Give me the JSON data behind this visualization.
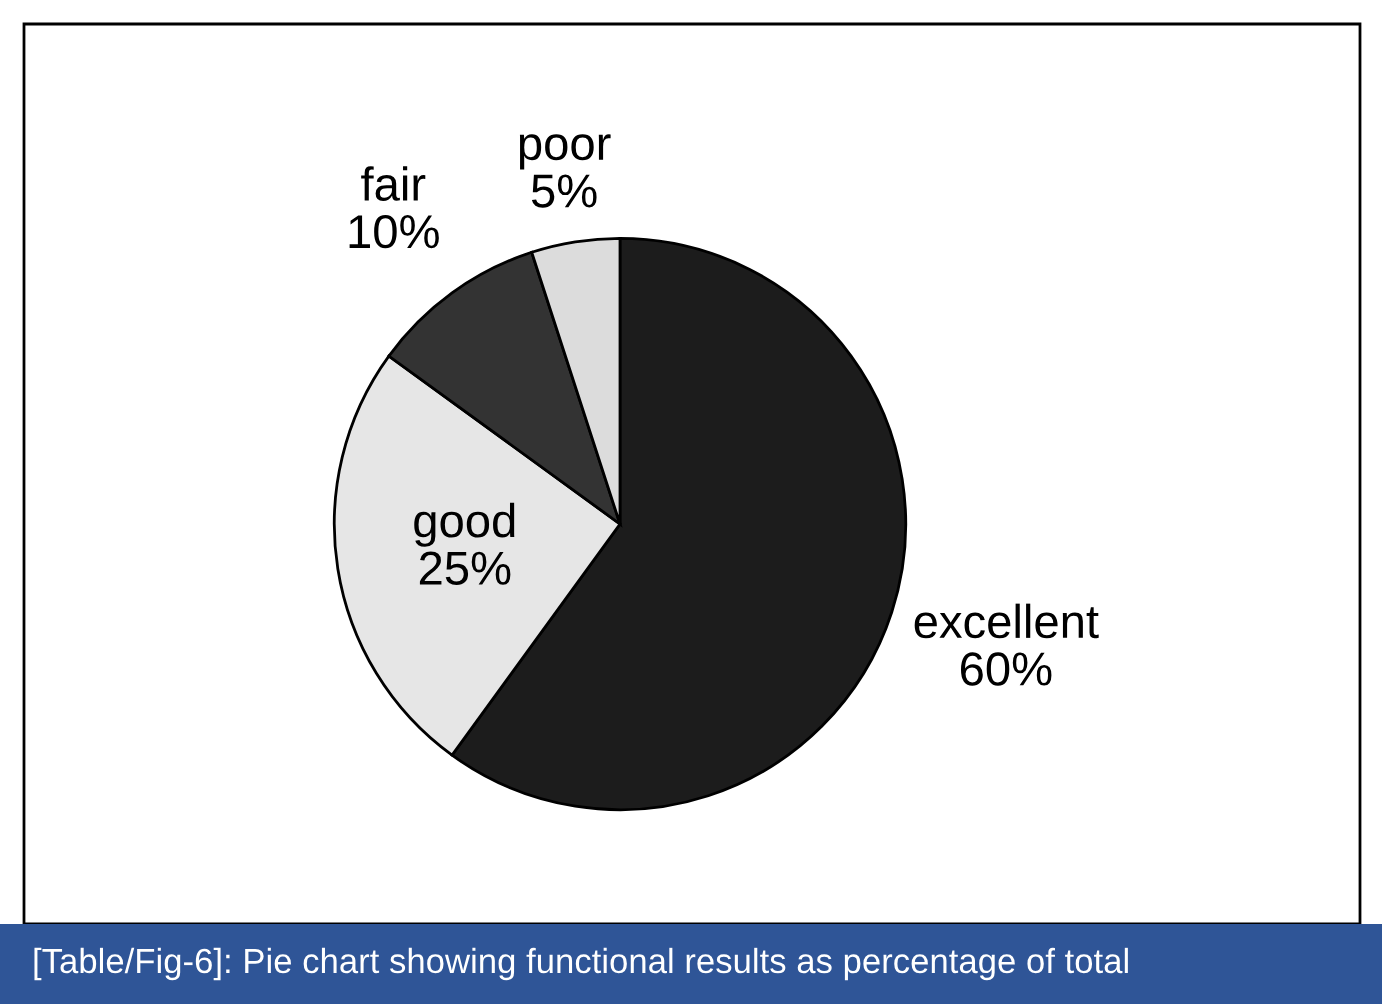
{
  "chart_data": {
    "type": "pie",
    "categories": [
      "excellent",
      "good",
      "fair",
      "poor"
    ],
    "values": [
      60,
      25,
      10,
      5
    ],
    "value_labels": [
      "60%",
      "25%",
      "10%",
      "5%"
    ],
    "colors": [
      "#1c1c1c",
      "#e6e6e6",
      "#333333",
      "#dcdcdc"
    ],
    "annotations": [
      "[Table/Fig-6]: Pie chart showing functional results as percentage of total"
    ]
  }
}
